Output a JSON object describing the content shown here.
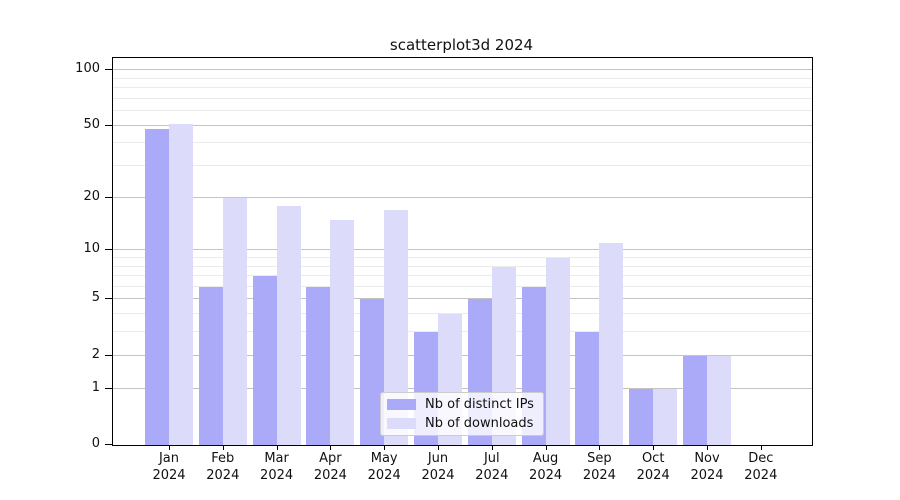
{
  "chart_data": {
    "type": "bar",
    "title": "scatterplot3d 2024",
    "xlabel": "",
    "ylabel": "",
    "year_line": "2024",
    "categories": [
      "Jan",
      "Feb",
      "Mar",
      "Apr",
      "May",
      "Jun",
      "Jul",
      "Aug",
      "Sep",
      "Oct",
      "Nov",
      "Dec"
    ],
    "series": [
      {
        "name": "Nb of distinct IPs",
        "color": "#aaaaf8",
        "values": [
          48,
          6,
          7,
          6,
          5,
          3,
          5,
          6,
          3,
          1,
          2,
          0
        ]
      },
      {
        "name": "Nb of downloads",
        "color": "#dcdcfa",
        "values": [
          51,
          20,
          18,
          15,
          17,
          4,
          8,
          9,
          11,
          1,
          2,
          0
        ]
      }
    ],
    "y_scale": "log1p",
    "y_ticks": [
      0,
      1,
      2,
      5,
      10,
      20,
      50,
      100
    ],
    "y_minor_gridlines": [
      3,
      4,
      6,
      7,
      8,
      9,
      30,
      40,
      60,
      70,
      80,
      90
    ],
    "ylim": [
      0,
      116
    ],
    "grid": true,
    "legend_position": "lower center inside plot"
  }
}
